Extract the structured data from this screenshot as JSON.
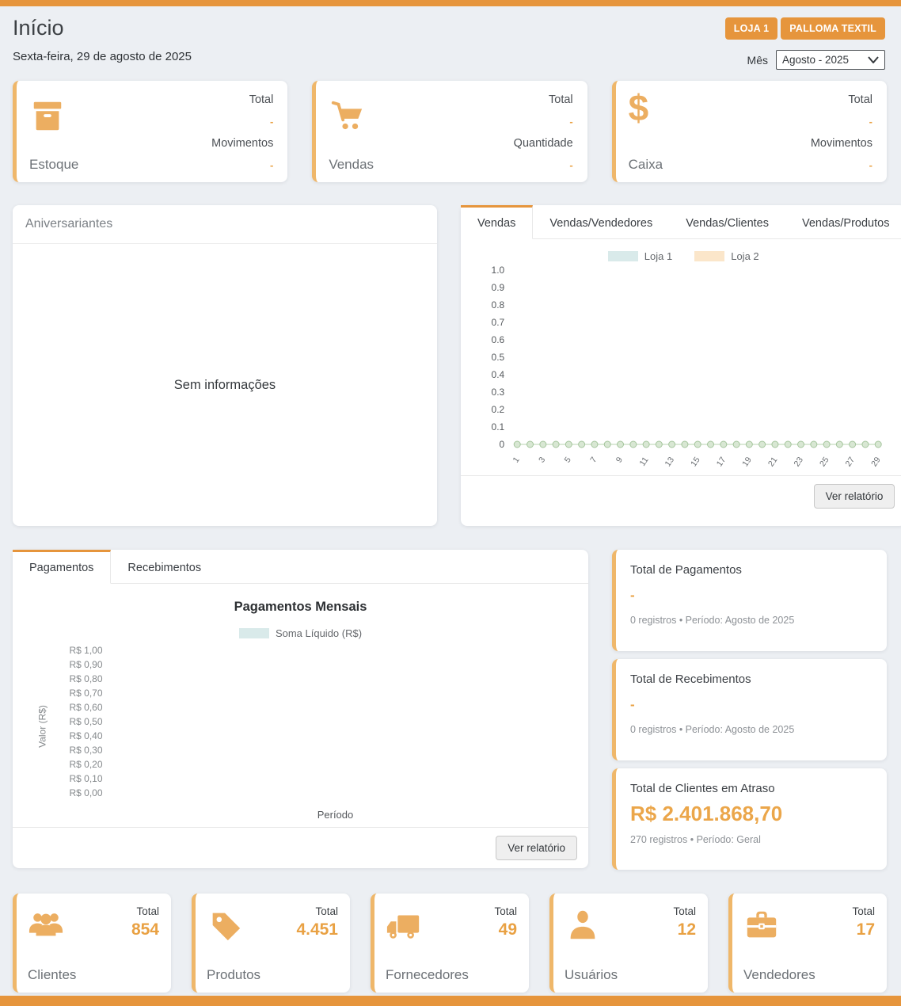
{
  "colors": {
    "accent": "#e6953c",
    "accent_light": "#efb76a",
    "value_orange": "#e9a143"
  },
  "header": {
    "title": "Início",
    "date": "Sexta-feira, 29 de agosto de 2025",
    "store_buttons": [
      "LOJA 1",
      "PALLOMA TEXTIL"
    ],
    "month_label": "Mês",
    "month_value": "Agosto - 2025"
  },
  "summary_cards": [
    {
      "name": "Estoque",
      "icon": "box-icon",
      "rows": [
        {
          "label": "Total",
          "value": "-"
        },
        {
          "label": "Movimentos",
          "value": "-"
        }
      ]
    },
    {
      "name": "Vendas",
      "icon": "cart-icon",
      "rows": [
        {
          "label": "Total",
          "value": "-"
        },
        {
          "label": "Quantidade",
          "value": "-"
        }
      ]
    },
    {
      "name": "Caixa",
      "icon": "dollar-icon",
      "rows": [
        {
          "label": "Total",
          "value": "-"
        },
        {
          "label": "Movimentos",
          "value": "-"
        }
      ]
    }
  ],
  "birthdays": {
    "title": "Aniversariantes",
    "empty_text": "Sem informações"
  },
  "sales_panel": {
    "tabs": [
      "Vendas",
      "Vendas/Vendedores",
      "Vendas/Clientes",
      "Vendas/Produtos"
    ],
    "active_tab": "Vendas",
    "report_button": "Ver relatório"
  },
  "payments_panel": {
    "tabs": [
      "Pagamentos",
      "Recebimentos"
    ],
    "active_tab": "Pagamentos",
    "report_button": "Ver relatório"
  },
  "totals_cards": [
    {
      "title": "Total de Pagamentos",
      "value": "-",
      "meta": "0 registros • Período: Agosto de 2025"
    },
    {
      "title": "Total de Recebimentos",
      "value": "-",
      "meta": "0 registros • Período: Agosto de 2025"
    },
    {
      "title": "Total de Clientes em Atraso",
      "value": "R$ 2.401.868,70",
      "meta": "270 registros • Período: Geral"
    }
  ],
  "entity_cards": [
    {
      "name": "Clientes",
      "icon": "people-icon",
      "total_label": "Total",
      "value": "854"
    },
    {
      "name": "Produtos",
      "icon": "tag-icon",
      "total_label": "Total",
      "value": "4.451"
    },
    {
      "name": "Fornecedores",
      "icon": "truck-icon",
      "total_label": "Total",
      "value": "49"
    },
    {
      "name": "Usuários",
      "icon": "person-icon",
      "total_label": "Total",
      "value": "12"
    },
    {
      "name": "Vendedores",
      "icon": "briefcase-icon",
      "total_label": "Total",
      "value": "17"
    }
  ],
  "chart_data": [
    {
      "type": "line",
      "title": "",
      "x": [
        1,
        2,
        3,
        4,
        5,
        6,
        7,
        8,
        9,
        10,
        11,
        12,
        13,
        14,
        15,
        16,
        17,
        18,
        19,
        20,
        21,
        22,
        23,
        24,
        25,
        26,
        27,
        28,
        29
      ],
      "x_tick_labels": [
        "1",
        "3",
        "5",
        "7",
        "9",
        "11",
        "13",
        "15",
        "17",
        "19",
        "21",
        "23",
        "25",
        "27",
        "29"
      ],
      "yticks": [
        "1.0",
        "0.9",
        "0.8",
        "0.7",
        "0.6",
        "0.5",
        "0.4",
        "0.3",
        "0.2",
        "0.1",
        "0"
      ],
      "ylim": [
        0,
        1
      ],
      "legend_position": "top",
      "series": [
        {
          "name": "Loja 1",
          "color": "#d9eaea",
          "values": [
            0,
            0,
            0,
            0,
            0,
            0,
            0,
            0,
            0,
            0,
            0,
            0,
            0,
            0,
            0,
            0,
            0,
            0,
            0,
            0,
            0,
            0,
            0,
            0,
            0,
            0,
            0,
            0,
            0
          ]
        },
        {
          "name": "Loja 2",
          "color": "#fbe6ca",
          "values": [
            0,
            0,
            0,
            0,
            0,
            0,
            0,
            0,
            0,
            0,
            0,
            0,
            0,
            0,
            0,
            0,
            0,
            0,
            0,
            0,
            0,
            0,
            0,
            0,
            0,
            0,
            0,
            0,
            0
          ]
        }
      ],
      "point_style": {
        "fill": "#d8e7d3",
        "stroke": "#a5c59d",
        "line": "#cfe2ca"
      }
    },
    {
      "type": "bar",
      "title": "Pagamentos Mensais",
      "legend": [
        "Soma Líquido (R$)"
      ],
      "legend_color": "#d9eaea",
      "yticks": [
        "R$ 1,00",
        "R$ 0,90",
        "R$ 0,80",
        "R$ 0,70",
        "R$ 0,60",
        "R$ 0,50",
        "R$ 0,40",
        "R$ 0,30",
        "R$ 0,20",
        "R$ 0,10",
        "R$ 0,00"
      ],
      "ylabel": "Valor (R$)",
      "xlabel": "Período",
      "categories": [],
      "values": []
    }
  ]
}
